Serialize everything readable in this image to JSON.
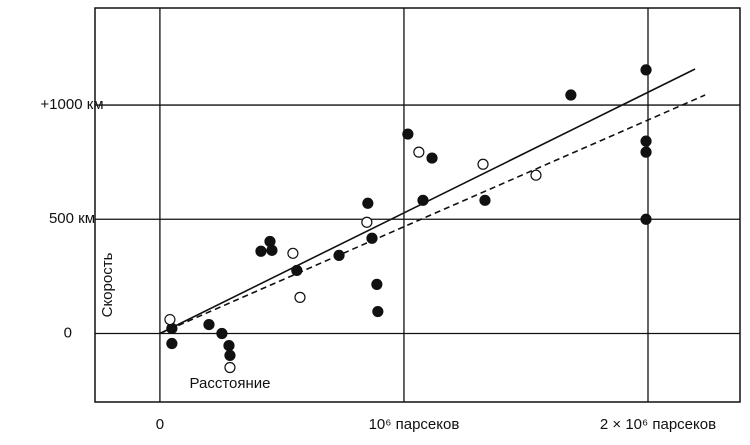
{
  "chart_data": {
    "type": "scatter",
    "x_label": "Расстояние",
    "y_label": "Скорость",
    "xlim": [
      -266000,
      2377000
    ],
    "ylim": [
      -300,
      1425
    ],
    "xticks": [
      0,
      {
        "value": 1000000,
        "label": "10⁶ парсеков"
      },
      {
        "value": 2000000,
        "label": "2 × 10⁶ парсеков"
      }
    ],
    "yticks": [
      0,
      {
        "value": 500,
        "label": "500 км"
      },
      {
        "value": 1000,
        "label": "+1000 км"
      }
    ],
    "grid": true,
    "series": [
      {
        "color": "#111111",
        "marker": "filled",
        "x": [
          49000,
          49000,
          201000,
          254000,
          283000,
          287000,
          414000,
          451000,
          459000,
          561000,
          734000,
          852000,
          869000,
          889000,
          893000,
          1016000,
          1078000,
          1115000,
          1332000,
          1684000,
          1992000,
          1992000,
          1992000,
          1992000
        ],
        "values": [
          22,
          -44,
          39,
          0,
          -53,
          -96,
          360,
          403,
          364,
          276,
          342,
          570,
          417,
          215,
          96,
          873,
          583,
          768,
          583,
          1044,
          1154,
          842,
          794,
          500
        ]
      },
      {
        "color": "#111111",
        "marker": "open",
        "x": [
          41000,
          287000,
          545000,
          574000,
          848000,
          1061000,
          1324000,
          1541000
        ],
        "values": [
          61,
          -149,
          351,
          158,
          487,
          794,
          741,
          693
        ]
      }
    ],
    "lines": [
      {
        "style": "solid",
        "color": "#111111",
        "x": [
          0,
          2193000
        ],
        "values": [
          0,
          1158
        ]
      },
      {
        "style": "dashed",
        "color": "#111111",
        "x": [
          0,
          2234000
        ],
        "values": [
          0,
          1044
        ]
      }
    ]
  }
}
